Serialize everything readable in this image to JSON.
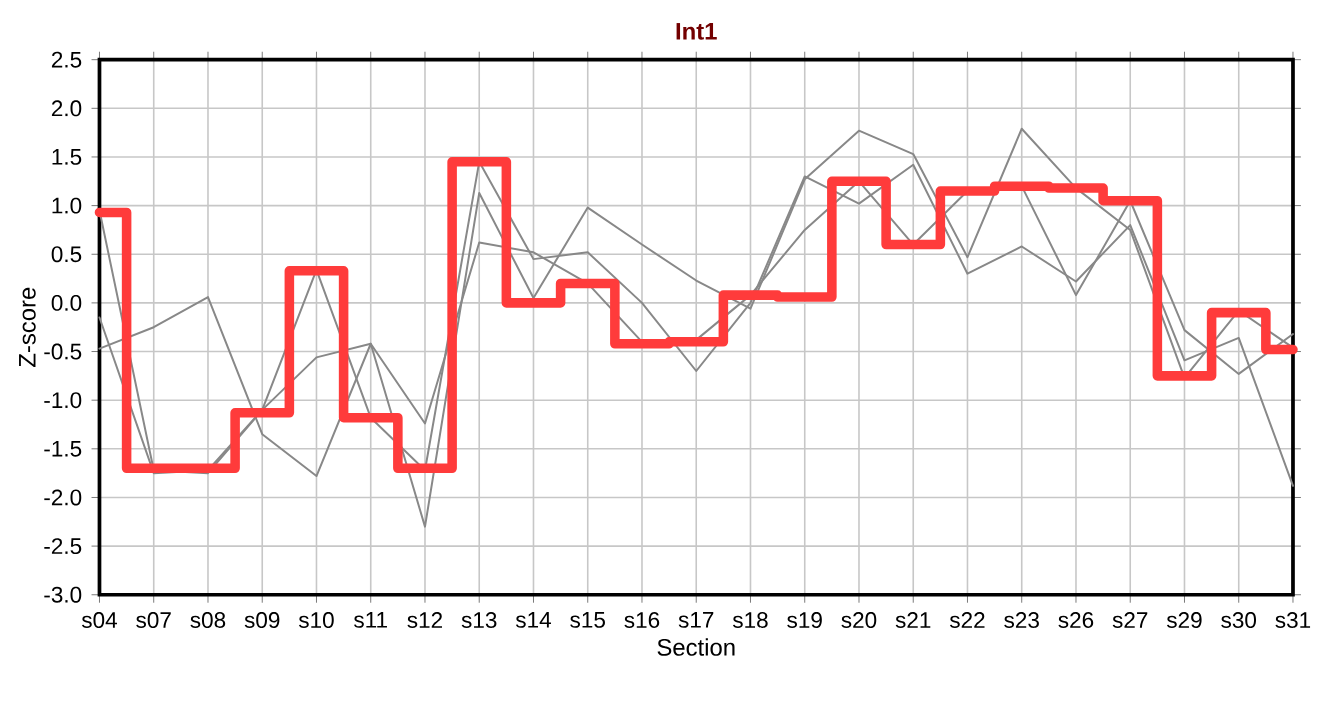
{
  "chart_data": {
    "type": "line",
    "title": "Int1",
    "xlabel": "Section",
    "ylabel": "Z-score",
    "categories": [
      "s04",
      "s07",
      "s08",
      "s09",
      "s10",
      "s11",
      "s12",
      "s13",
      "s14",
      "s15",
      "s16",
      "s17",
      "s18",
      "s19",
      "s20",
      "s21",
      "s22",
      "s23",
      "s26",
      "s27",
      "s29",
      "s30",
      "s31"
    ],
    "ylim": [
      -3.0,
      2.5
    ],
    "yticks": [
      {
        "value": -3.0,
        "label": "-3.0"
      },
      {
        "value": -2.5,
        "label": "-2.5"
      },
      {
        "value": -2.0,
        "label": "-2.0"
      },
      {
        "value": -1.5,
        "label": "-1.5"
      },
      {
        "value": -1.0,
        "label": "-1.0"
      },
      {
        "value": -0.5,
        "label": "-0.5"
      },
      {
        "value": 0.0,
        "label": "0.0"
      },
      {
        "value": 0.5,
        "label": "0.5"
      },
      {
        "value": 1.0,
        "label": "1.0"
      },
      {
        "value": 1.5,
        "label": "1.5"
      },
      {
        "value": 2.0,
        "label": "2.0"
      },
      {
        "value": 2.5,
        "label": "2.5"
      }
    ],
    "grid": true,
    "series": [
      {
        "color": "#888888",
        "values": [
          0.95,
          -1.72,
          -1.75,
          -1.1,
          0.34,
          -1.18,
          -1.72,
          1.45,
          0.45,
          0.52,
          0.0,
          -0.7,
          0.0,
          1.3,
          1.02,
          1.42,
          0.3,
          0.58,
          0.22,
          0.8,
          -0.59,
          -0.36,
          -1.88
        ]
      },
      {
        "color": "#888888",
        "values": [
          -0.15,
          -1.75,
          -1.72,
          -1.1,
          -0.56,
          -0.42,
          -1.24,
          0.62,
          0.52,
          0.2,
          -0.4,
          -0.38,
          0.08,
          0.75,
          1.25,
          0.6,
          1.15,
          1.2,
          0.08,
          1.05,
          -0.28,
          -0.73,
          -0.32
        ]
      },
      {
        "color": "#888888",
        "values": [
          -0.47,
          -0.25,
          0.06,
          -1.35,
          -1.78,
          -0.42,
          -2.3,
          1.13,
          0.05,
          0.98,
          0.6,
          0.23,
          -0.06,
          1.27,
          1.77,
          1.53,
          0.47,
          1.79,
          1.18,
          0.75,
          -0.77,
          -0.08,
          -0.46
        ]
      },
      {
        "type": "step",
        "color": "#ff3b3b",
        "values": [
          0.93,
          -1.7,
          -1.7,
          -1.13,
          0.33,
          -1.18,
          -1.7,
          1.45,
          0.0,
          0.2,
          -0.42,
          -0.4,
          0.08,
          0.06,
          1.25,
          0.6,
          1.15,
          1.2,
          1.18,
          1.05,
          -0.75,
          -0.1,
          -0.48
        ]
      }
    ]
  }
}
